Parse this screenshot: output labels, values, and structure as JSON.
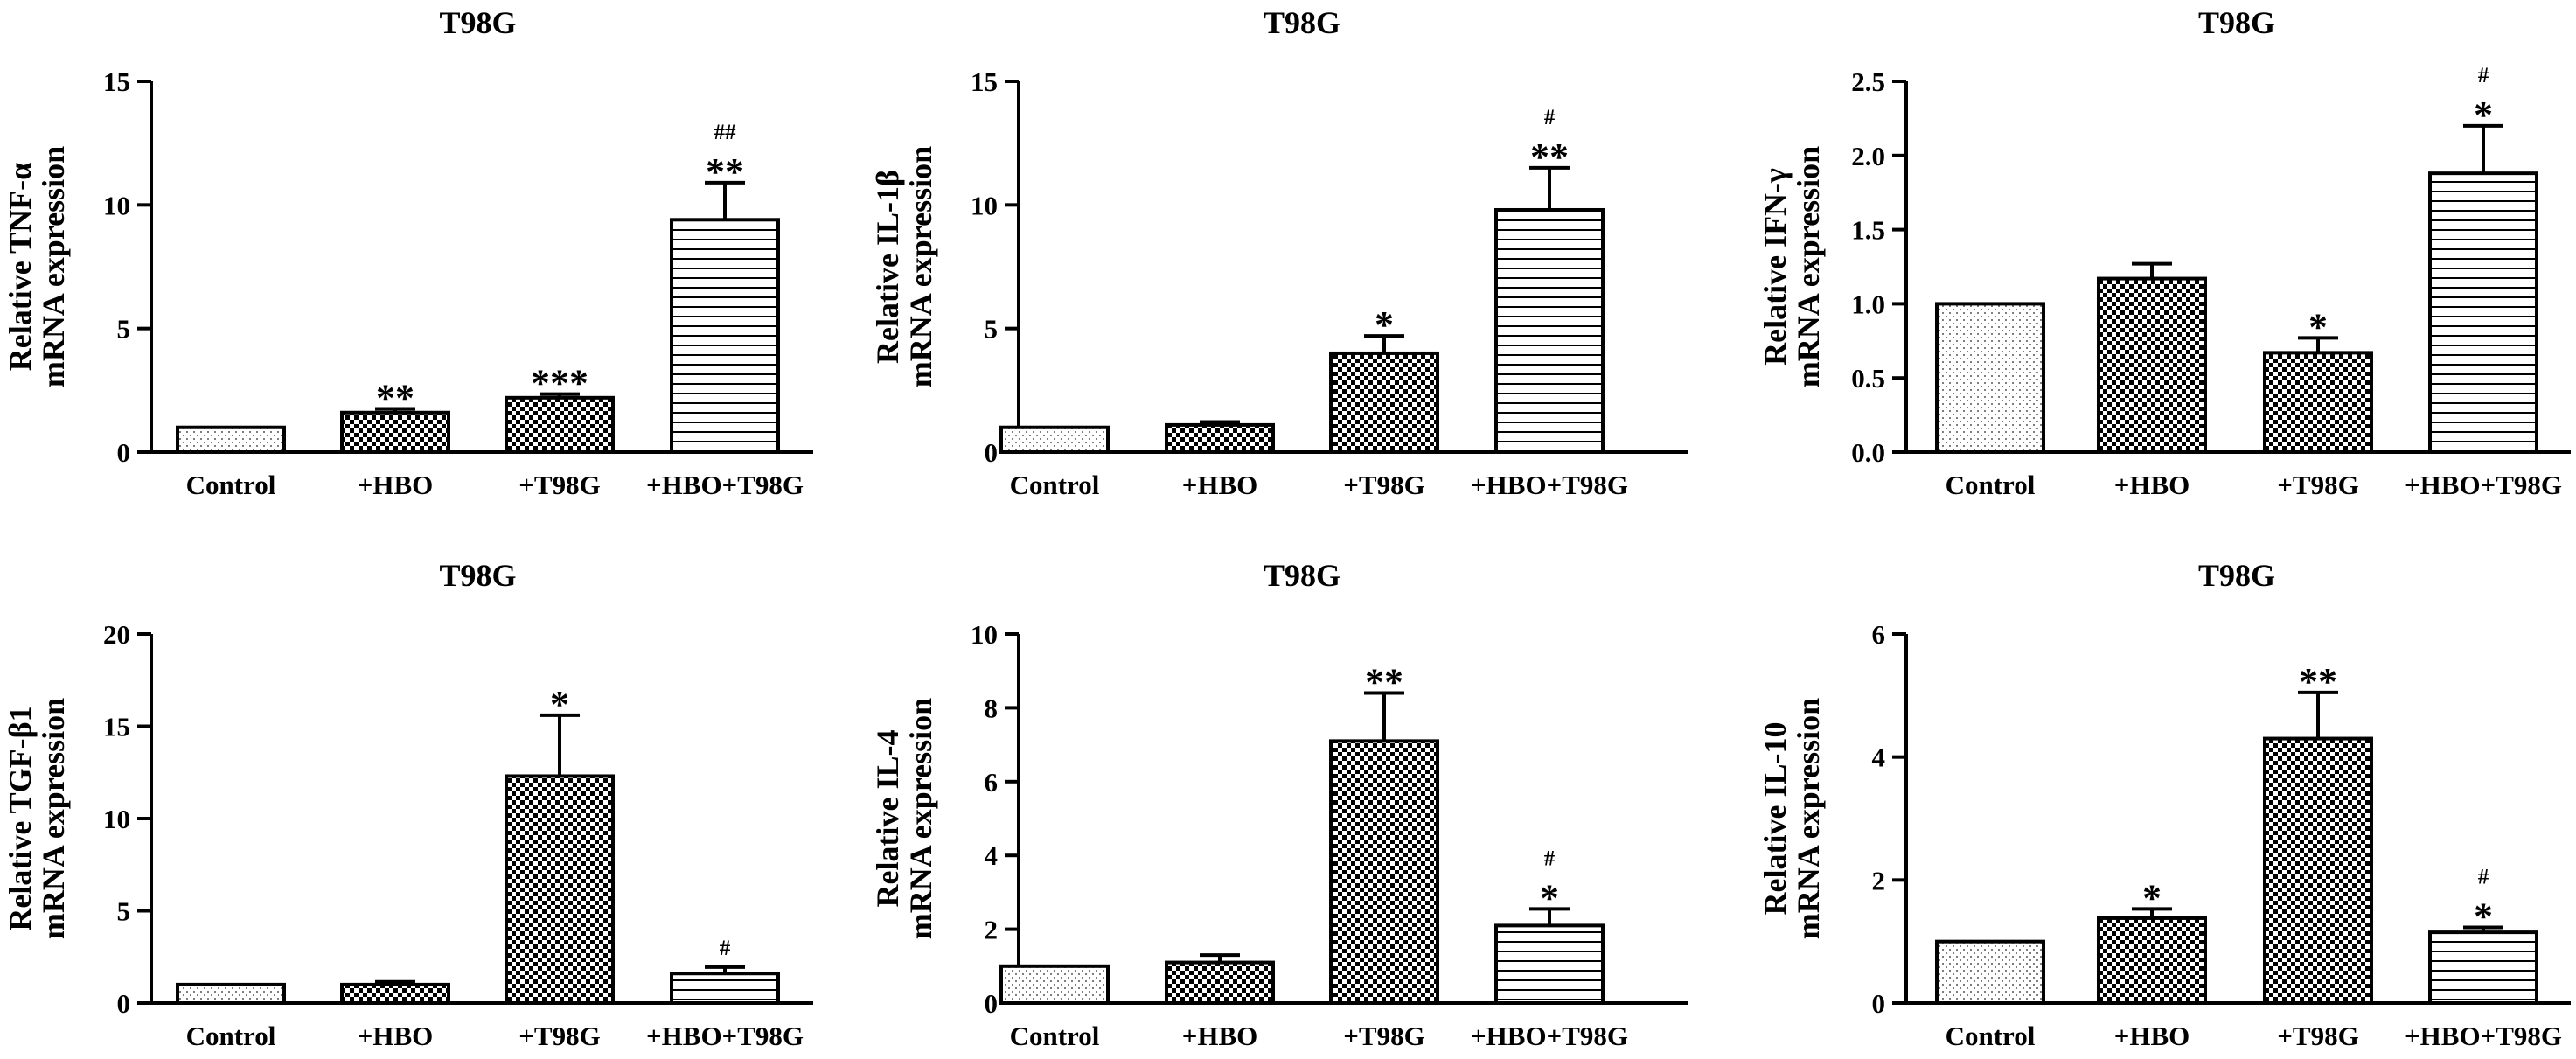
{
  "chart_data": [
    {
      "type": "bar",
      "title": "T98G",
      "ylabel": [
        "Relative TNF-α",
        "mRNA expression"
      ],
      "categories": [
        "Control",
        "+HBO",
        "+T98G",
        "+HBO+T98G"
      ],
      "values": [
        1.0,
        1.6,
        2.2,
        9.4
      ],
      "errors": [
        0,
        0.15,
        0.15,
        1.5
      ],
      "sig": [
        "",
        "**",
        "***",
        "**"
      ],
      "hash": [
        "",
        "",
        "",
        "##"
      ],
      "ylim": [
        0,
        15
      ],
      "yticks": [
        0,
        5,
        10,
        15
      ],
      "tick_labels": [
        "0",
        "5",
        "10",
        "15"
      ],
      "patterns": [
        "dots",
        "check",
        "check",
        "hstripe"
      ]
    },
    {
      "type": "bar",
      "title": "T98G",
      "ylabel": [
        "Relative IL-1β",
        "mRNA expression"
      ],
      "categories": [
        "Control",
        "+HBO",
        "+T98G",
        "+HBO+T98G"
      ],
      "values": [
        1.0,
        1.1,
        4.0,
        9.8
      ],
      "errors": [
        0,
        0.12,
        0.7,
        1.7
      ],
      "sig": [
        "",
        "",
        "*",
        "**"
      ],
      "hash": [
        "",
        "",
        "",
        "#"
      ],
      "ylim": [
        0,
        15
      ],
      "yticks": [
        0,
        5,
        10,
        15
      ],
      "tick_labels": [
        "0",
        "5",
        "10",
        "15"
      ],
      "patterns": [
        "dots",
        "check",
        "check",
        "hstripe"
      ]
    },
    {
      "type": "bar",
      "title": "T98G",
      "ylabel": [
        "Relative IFN-γ",
        "mRNA expression"
      ],
      "categories": [
        "Control",
        "+HBO",
        "+T98G",
        "+HBO+T98G"
      ],
      "values": [
        1.0,
        1.17,
        0.67,
        1.88
      ],
      "errors": [
        0,
        0.1,
        0.1,
        0.32
      ],
      "sig": [
        "",
        "",
        "*",
        "*"
      ],
      "hash": [
        "",
        "",
        "",
        "#"
      ],
      "ylim": [
        0,
        2.5
      ],
      "yticks": [
        0,
        0.5,
        1,
        1.5,
        2,
        2.5
      ],
      "tick_labels": [
        "0.0",
        "0.5",
        "1.0",
        "1.5",
        "2.0",
        "2.5"
      ],
      "patterns": [
        "dots",
        "check",
        "check",
        "hstripe"
      ]
    },
    {
      "type": "bar",
      "title": "T98G",
      "ylabel": [
        "Relative TGF-β1",
        "mRNA expression"
      ],
      "categories": [
        "Control",
        "+HBO",
        "+T98G",
        "+HBO+T98G"
      ],
      "values": [
        1.0,
        1.0,
        12.3,
        1.6
      ],
      "errors": [
        0,
        0.15,
        3.3,
        0.35
      ],
      "sig": [
        "",
        "",
        "*",
        ""
      ],
      "hash": [
        "",
        "",
        "",
        "#"
      ],
      "ylim": [
        0,
        20
      ],
      "yticks": [
        0,
        5,
        10,
        15,
        20
      ],
      "tick_labels": [
        "0",
        "5",
        "10",
        "15",
        "20"
      ],
      "patterns": [
        "dots",
        "check",
        "check",
        "hstripe"
      ]
    },
    {
      "type": "bar",
      "title": "T98G",
      "ylabel": [
        "Relative IL-4",
        "mRNA expression"
      ],
      "categories": [
        "Control",
        "+HBO",
        "+T98G",
        "+HBO+T98G"
      ],
      "values": [
        1.0,
        1.1,
        7.1,
        2.1
      ],
      "errors": [
        0,
        0.2,
        1.3,
        0.45
      ],
      "sig": [
        "",
        "",
        "**",
        "*"
      ],
      "hash": [
        "",
        "",
        "",
        "#"
      ],
      "ylim": [
        0,
        10
      ],
      "yticks": [
        0,
        2,
        4,
        6,
        8,
        10
      ],
      "tick_labels": [
        "0",
        "2",
        "4",
        "6",
        "8",
        "10"
      ],
      "patterns": [
        "dots",
        "check",
        "check",
        "hstripe"
      ]
    },
    {
      "type": "bar",
      "title": "T98G",
      "ylabel": [
        "Relative IL-10",
        "mRNA expression"
      ],
      "categories": [
        "Control",
        "+HBO",
        "+T98G",
        "+HBO+T98G"
      ],
      "values": [
        1.0,
        1.38,
        4.3,
        1.15
      ],
      "errors": [
        0,
        0.15,
        0.75,
        0.08
      ],
      "sig": [
        "",
        "*",
        "**",
        "*"
      ],
      "hash": [
        "",
        "",
        "",
        "#"
      ],
      "ylim": [
        0,
        6
      ],
      "yticks": [
        0,
        2,
        4,
        6
      ],
      "tick_labels": [
        "0",
        "2",
        "4",
        "6"
      ],
      "patterns": [
        "dots",
        "check",
        "check",
        "hstripe"
      ]
    }
  ]
}
